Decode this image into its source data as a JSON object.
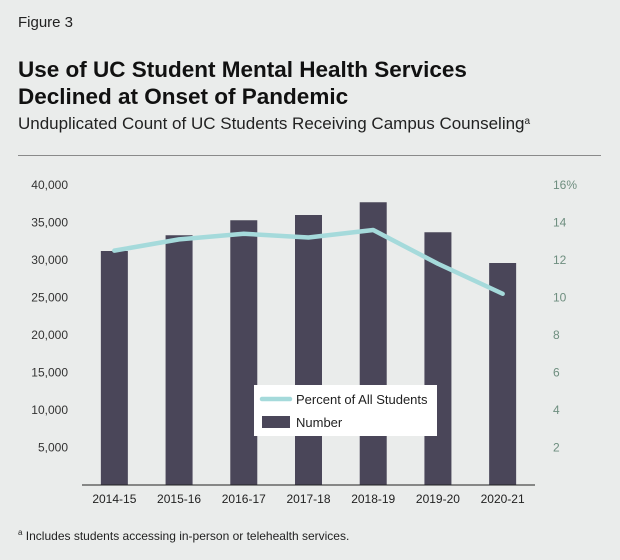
{
  "figure_label": "Figure 3",
  "title_line1": "Use of UC Student Mental Health Services",
  "title_line2": "Declined at Onset of Pandemic",
  "subtitle": "Unduplicated Count of UC Students Receiving Campus Counseling",
  "subtitle_marker": "a",
  "footnote_marker": "a",
  "footnote": "Includes students accessing in-person or telehealth services.",
  "colors": {
    "bar": "#4a4659",
    "line": "#a5dadb",
    "right_axis_text": "#6e8e7f",
    "legend_bg": "#ffffff"
  },
  "chart_data": {
    "type": "bar",
    "categories": [
      "2014-15",
      "2015-16",
      "2016-17",
      "2017-18",
      "2018-19",
      "2019-20",
      "2020-21"
    ],
    "series": [
      {
        "name": "Number",
        "type": "bar",
        "axis": "left",
        "values": [
          31200,
          33300,
          35300,
          36000,
          37700,
          33700,
          29600
        ]
      },
      {
        "name": "Percent of All Students",
        "type": "line",
        "axis": "right",
        "values": [
          12.5,
          13.1,
          13.4,
          13.2,
          13.6,
          11.8,
          10.2
        ]
      }
    ],
    "left_axis": {
      "ylim": [
        0,
        40000
      ],
      "ticks": [
        5000,
        10000,
        15000,
        20000,
        25000,
        30000,
        35000,
        40000
      ],
      "tick_labels": [
        "5,000",
        "10,000",
        "15,000",
        "20,000",
        "25,000",
        "30,000",
        "35,000",
        "40,000"
      ]
    },
    "right_axis": {
      "ylim": [
        0,
        16
      ],
      "ticks": [
        2,
        4,
        6,
        8,
        10,
        12,
        14,
        16
      ],
      "tick_labels": [
        "2",
        "4",
        "6",
        "8",
        "10",
        "12",
        "14",
        "16%"
      ]
    },
    "grid": false,
    "legend": {
      "placement": "center-bottom",
      "entries": [
        "Percent of All Students",
        "Number"
      ]
    }
  }
}
